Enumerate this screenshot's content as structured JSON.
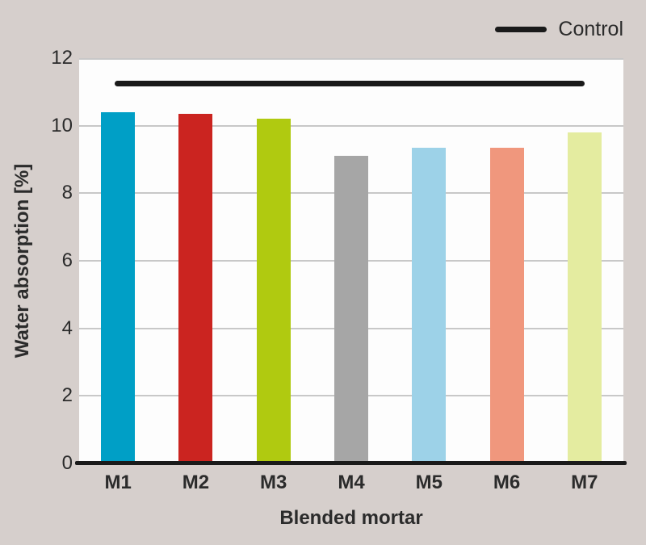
{
  "background_color": "#d6cfcc",
  "text_color": "#2b2b2b",
  "legend": {
    "label": "Control",
    "line_color": "#1a1a1a",
    "position": "top-right"
  },
  "chart_data": {
    "type": "bar",
    "title": "",
    "categories": [
      "M1",
      "M2",
      "M3",
      "M4",
      "M5",
      "M6",
      "M7"
    ],
    "values": [
      10.4,
      10.35,
      10.2,
      9.1,
      9.35,
      9.35,
      9.8
    ],
    "bar_colors": [
      "#009fc6",
      "#cb2420",
      "#b0ca10",
      "#a6a6a6",
      "#9dd2e8",
      "#f0977d",
      "#e4eca0"
    ],
    "xlabel": "Blended mortar",
    "ylabel": "Water absorption [%]",
    "ylim": [
      0,
      12
    ],
    "yticks": [
      0,
      2,
      4,
      6,
      8,
      10,
      12
    ],
    "grid": "horizontal",
    "gridline_color": "#c8c8c8",
    "plot_background": "#fdfdfd",
    "axis_color": "#1a1a1a",
    "control_line": {
      "name": "Control",
      "value": 11.25,
      "color": "#1a1a1a"
    },
    "legend_entries": [
      {
        "label": "Control",
        "style": "line",
        "color": "#1a1a1a"
      }
    ]
  }
}
